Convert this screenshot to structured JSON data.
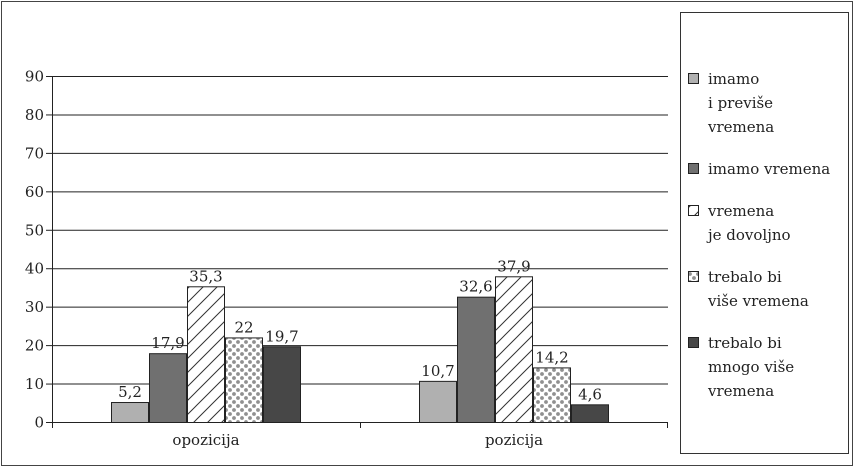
{
  "chart_data": {
    "type": "bar",
    "title": "",
    "xlabel": "",
    "ylabel": "",
    "ylim": [
      0,
      90
    ],
    "yticks": [
      0,
      10,
      20,
      30,
      40,
      50,
      60,
      70,
      80,
      90
    ],
    "grid": true,
    "legend_position": "right",
    "categories": [
      "opozicija",
      "pozicija"
    ],
    "series": [
      {
        "name": "imamo i previše vremena",
        "legend_lines": [
          "imamo",
          "i previše",
          "vremena"
        ],
        "values": [
          5.2,
          10.7
        ],
        "labels": [
          "5,2",
          "10,7"
        ],
        "fill": "#b0b0b0",
        "pattern": "solid"
      },
      {
        "name": "imamo vremena",
        "legend_lines": [
          "imamo vremena"
        ],
        "values": [
          17.9,
          32.6
        ],
        "labels": [
          "17,9",
          "32,6"
        ],
        "fill": "#707070",
        "pattern": "solid"
      },
      {
        "name": "vremena je dovoljno",
        "legend_lines": [
          "vremena",
          "je dovoljno"
        ],
        "values": [
          35.3,
          37.9
        ],
        "labels": [
          "35,3",
          "37,9"
        ],
        "fill": "#ffffff",
        "pattern": "hatch"
      },
      {
        "name": "trebalo bi više vremena",
        "legend_lines": [
          "trebalo bi",
          "više vremena"
        ],
        "values": [
          22,
          14.2
        ],
        "labels": [
          "22",
          "14,2"
        ],
        "fill": "#ffffff",
        "pattern": "dots"
      },
      {
        "name": "trebalo bi mnogo više vremena",
        "legend_lines": [
          "trebalo bi",
          "mnogo više",
          "vremena"
        ],
        "values": [
          19.7,
          4.6
        ],
        "labels": [
          "19,7",
          "4,6"
        ],
        "fill": "#474747",
        "pattern": "solid"
      }
    ]
  }
}
